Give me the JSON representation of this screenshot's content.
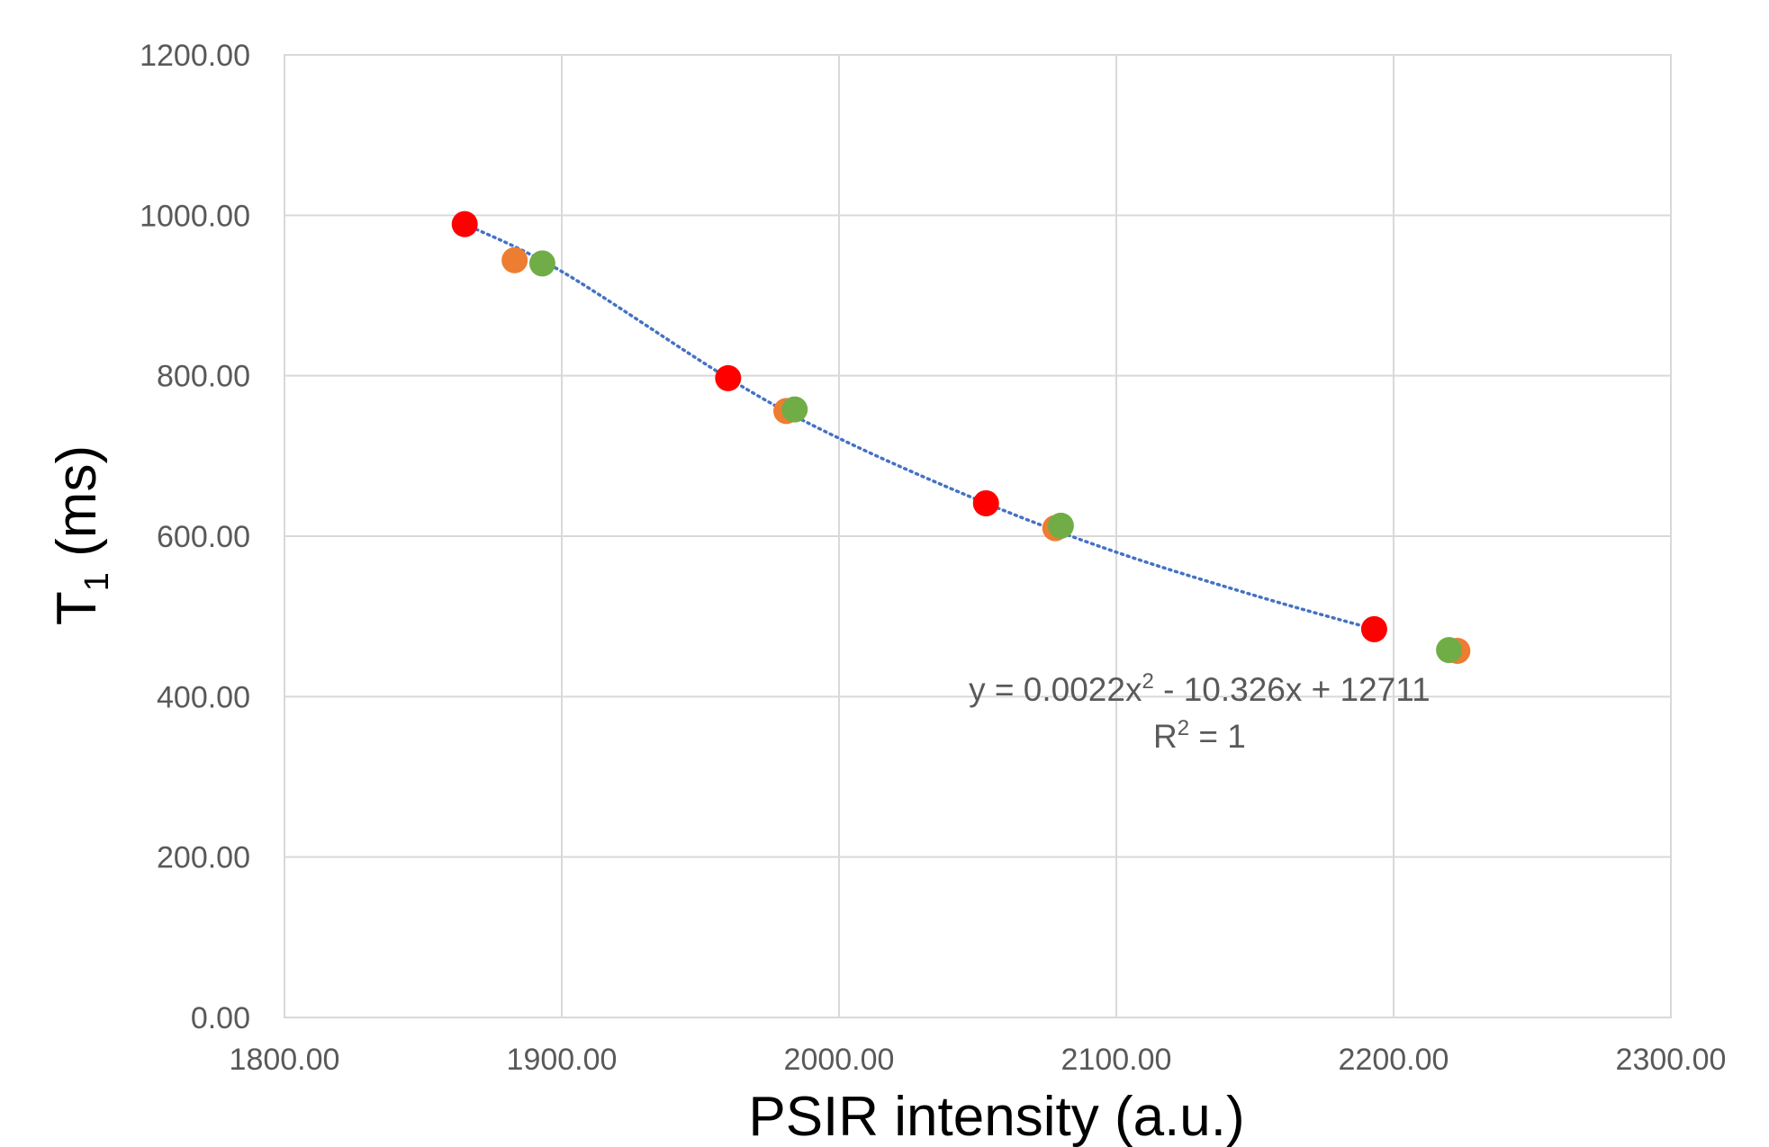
{
  "chart_data": {
    "type": "scatter",
    "title": "",
    "xlabel": "PSIR intensity (a.u.)",
    "ylabel_main": "T",
    "ylabel_sub": "1",
    "ylabel_rest": " (ms)",
    "xlim": [
      1800,
      2300
    ],
    "ylim": [
      0,
      1200
    ],
    "grid": true,
    "x_ticks": [
      1800,
      1900,
      2000,
      2100,
      2200,
      2300
    ],
    "x_tick_labels": [
      "1800.00",
      "1900.00",
      "2000.00",
      "2100.00",
      "2200.00",
      "2300.00"
    ],
    "y_ticks": [
      0,
      200,
      400,
      600,
      800,
      1000,
      1200
    ],
    "y_tick_labels": [
      "0.00",
      "200.00",
      "400.00",
      "600.00",
      "800.00",
      "1000.00",
      "1200.00"
    ],
    "series": [
      {
        "name": "series-orange",
        "color": "#ed7d31",
        "points": [
          {
            "x": 1883,
            "y": 944
          },
          {
            "x": 1981,
            "y": 756
          },
          {
            "x": 2078,
            "y": 610
          },
          {
            "x": 2223,
            "y": 457
          }
        ]
      },
      {
        "name": "series-green",
        "color": "#70ad47",
        "points": [
          {
            "x": 1893,
            "y": 940
          },
          {
            "x": 1984,
            "y": 758
          },
          {
            "x": 2080,
            "y": 613
          },
          {
            "x": 2220,
            "y": 458
          }
        ]
      },
      {
        "name": "series-red",
        "color": "#ff0000",
        "points": [
          {
            "x": 1865,
            "y": 989
          },
          {
            "x": 1960,
            "y": 797
          },
          {
            "x": 2053,
            "y": 641
          },
          {
            "x": 2193,
            "y": 484
          }
        ]
      }
    ],
    "trendline": {
      "type": "polynomial",
      "order": 2,
      "color": "#4472c4",
      "x_start": 1865,
      "x_end": 2193,
      "samples": [
        {
          "x": 1865,
          "y": 989
        },
        {
          "x": 1900,
          "y": 930
        },
        {
          "x": 1960,
          "y": 797
        },
        {
          "x": 2000,
          "y": 722
        },
        {
          "x": 2053,
          "y": 641
        },
        {
          "x": 2100,
          "y": 580
        },
        {
          "x": 2150,
          "y": 526
        },
        {
          "x": 2193,
          "y": 484
        }
      ],
      "equation_main": "y = 0.0022x",
      "equation_exp": "2",
      "equation_rest": " - 10.326x + 12711",
      "r2_main": "R",
      "r2_exp": "2",
      "r2_rest": " = 1",
      "label_anchor": {
        "x": 2130,
        "y": 395
      }
    },
    "marker_order": [
      "series-orange",
      "series-green",
      "series-red"
    ]
  }
}
